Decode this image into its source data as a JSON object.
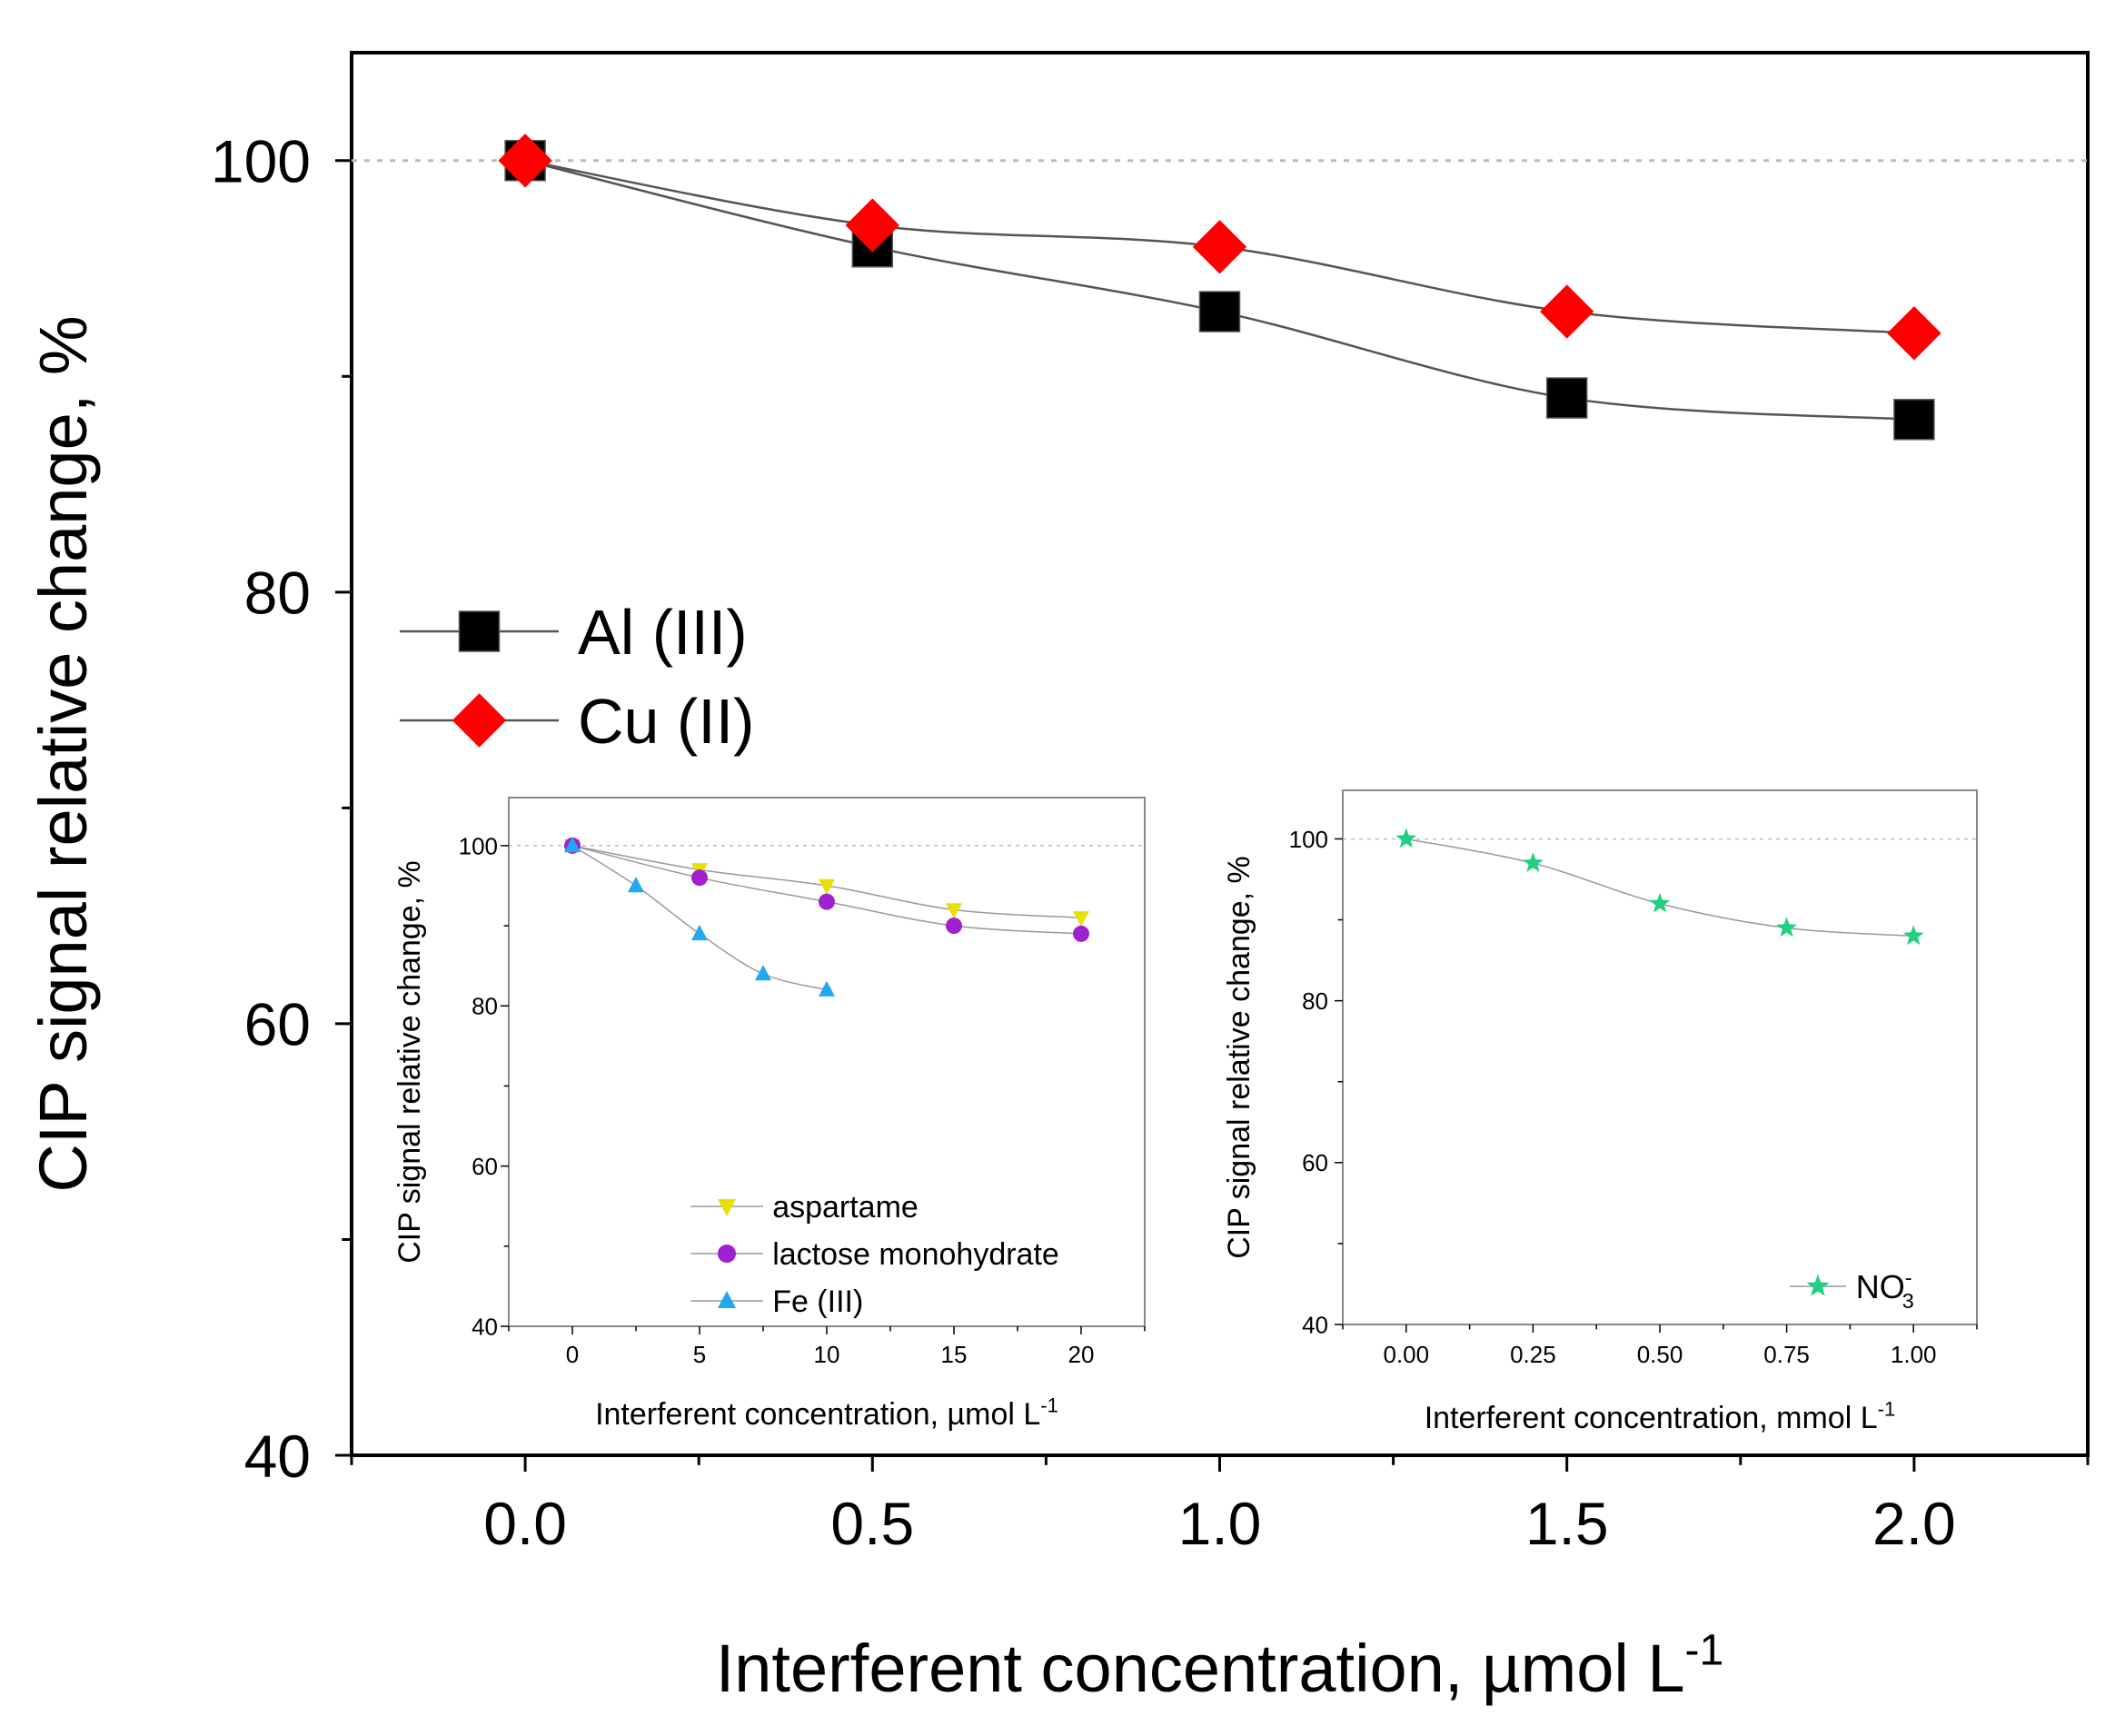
{
  "chart_data": [
    {
      "type": "line",
      "ylabel": "CIP signal relative change, %",
      "xlabel": "Interferent concentration, µmol L",
      "xlabel_sup": "-1",
      "xlim": [
        -0.25,
        2.25
      ],
      "ylim": [
        40,
        105
      ],
      "xticks": [
        "0.0",
        "0.5",
        "1.0",
        "1.5",
        "2.0"
      ],
      "yticks": [
        "40",
        "60",
        "80",
        "100"
      ],
      "reference_line": 100,
      "legend_position": "middle-left",
      "series": [
        {
          "name": "Al (III)",
          "marker": "square",
          "color": "#000000",
          "x": [
            0,
            0.5,
            1.0,
            1.5,
            2.0
          ],
          "y": [
            100,
            96,
            93,
            89,
            88
          ]
        },
        {
          "name": "Cu (II)",
          "marker": "diamond",
          "color": "#ff0000",
          "x": [
            0,
            0.5,
            1.0,
            1.5,
            2.0
          ],
          "y": [
            100,
            97,
            96,
            93,
            92
          ]
        }
      ]
    },
    {
      "type": "line",
      "ylabel": "CIP signal relative change, %",
      "xlabel": "Interferent concentration, µmol L",
      "xlabel_sup": "-1",
      "xlim": [
        -2.5,
        22.5
      ],
      "ylim": [
        40,
        106
      ],
      "xticks": [
        "0",
        "5",
        "10",
        "15",
        "20"
      ],
      "yticks": [
        "40",
        "60",
        "80",
        "100"
      ],
      "reference_line": 100,
      "legend_position": "bottom-right",
      "series": [
        {
          "name": "aspartame",
          "marker": "triangle-down",
          "color": "#e8e000",
          "x": [
            0,
            5,
            10,
            15,
            20
          ],
          "y": [
            100,
            97,
            95,
            92,
            91
          ]
        },
        {
          "name": "lactose monohydrate",
          "marker": "circle",
          "color": "#a020d0",
          "x": [
            0,
            5,
            10,
            15,
            20
          ],
          "y": [
            100,
            96,
            93,
            90,
            89
          ]
        },
        {
          "name": "Fe (III)",
          "marker": "triangle-up",
          "color": "#20a8f0",
          "x": [
            0,
            2.5,
            5,
            7.5,
            10
          ],
          "y": [
            100,
            95,
            89,
            84,
            82
          ]
        }
      ]
    },
    {
      "type": "line",
      "ylabel": "CIP signal relative change, %",
      "xlabel": "Interferent concentration, mmol L",
      "xlabel_sup": "-1",
      "xlim": [
        -0.125,
        1.125
      ],
      "ylim": [
        40,
        106
      ],
      "xticks": [
        "0.00",
        "0.25",
        "0.50",
        "0.75",
        "1.00"
      ],
      "yticks": [
        "40",
        "60",
        "80",
        "100"
      ],
      "reference_line": 100,
      "legend_position": "bottom-right",
      "series": [
        {
          "name": "NO",
          "name_sup": "-",
          "name_sub": "3",
          "marker": "star",
          "color": "#20d080",
          "x": [
            0,
            0.25,
            0.5,
            0.75,
            1.0
          ],
          "y": [
            100,
            97,
            92,
            89,
            88
          ]
        }
      ]
    }
  ]
}
